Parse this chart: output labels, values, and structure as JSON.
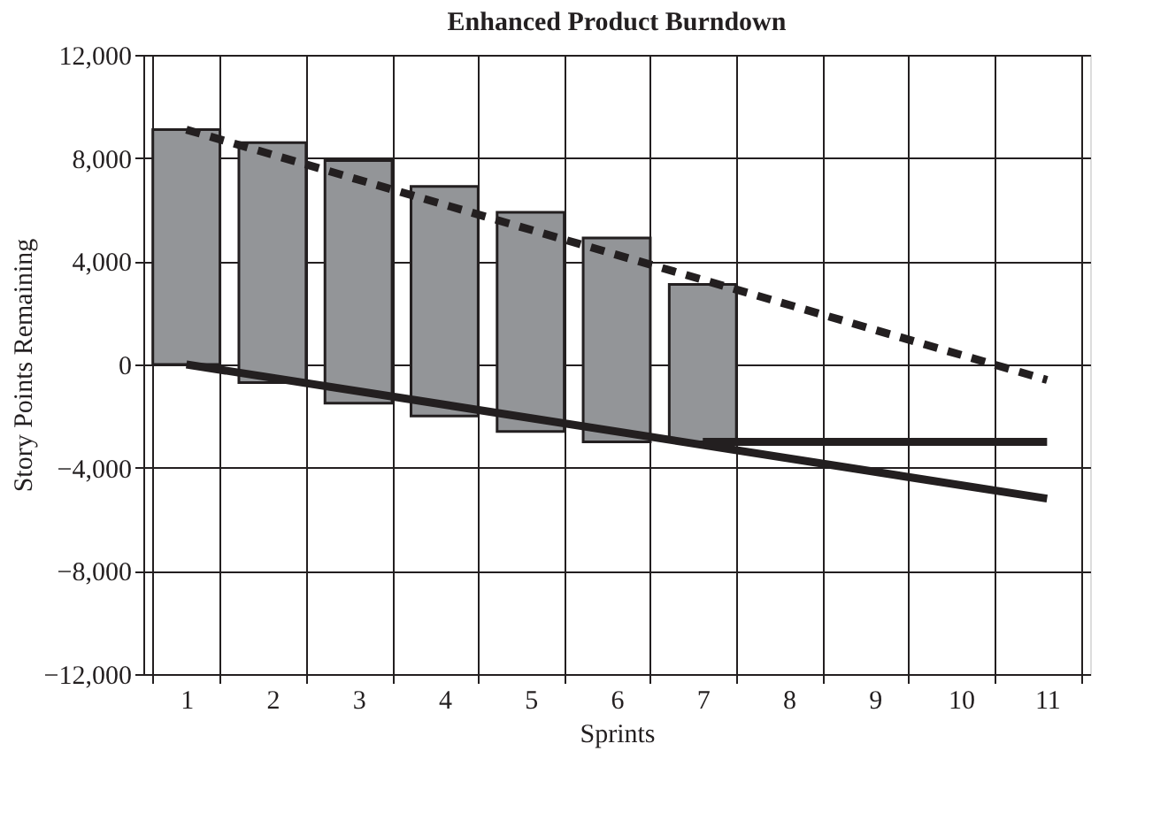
{
  "chart_data": {
    "type": "bar",
    "title": "Enhanced Product Burndown",
    "xlabel": "Sprints",
    "ylabel": "Story Points Remaining",
    "categories": [
      "1",
      "2",
      "3",
      "4",
      "5",
      "6",
      "7",
      "8",
      "9",
      "10",
      "11"
    ],
    "series": [
      {
        "color": "#939598",
        "base": [
          0,
          -700,
          -1500,
          -2000,
          -2600,
          -3000,
          -3000,
          null,
          null,
          null,
          null
        ],
        "values": [
          9100,
          9300,
          9400,
          8900,
          8500,
          7900,
          6100,
          null,
          null,
          null,
          null
        ]
      },
      {
        "type": "line",
        "color": "#231f20",
        "line_style": "dashed",
        "x": [
          "1",
          "11"
        ],
        "values": [
          9100,
          -600
        ]
      },
      {
        "type": "line",
        "color": "#231f20",
        "line_style": "solid",
        "x": [
          "1",
          "11"
        ],
        "values": [
          0,
          -5200
        ]
      },
      {
        "type": "line",
        "color": "#231f20",
        "line_style": "solid",
        "x": [
          "7",
          "11"
        ],
        "values": [
          -3000,
          -3000
        ]
      }
    ],
    "ylim": [
      -12000,
      12000
    ],
    "yticks": [
      {
        "value": -12000,
        "label": "−12,000"
      },
      {
        "value": -8000,
        "label": "−8,000"
      },
      {
        "value": -4000,
        "label": "−4,000"
      },
      0,
      {
        "value": 4000,
        "label": "4,000"
      },
      {
        "value": 8000,
        "label": "8,000"
      },
      {
        "value": 12000,
        "label": "12,000"
      }
    ],
    "grid": true
  }
}
